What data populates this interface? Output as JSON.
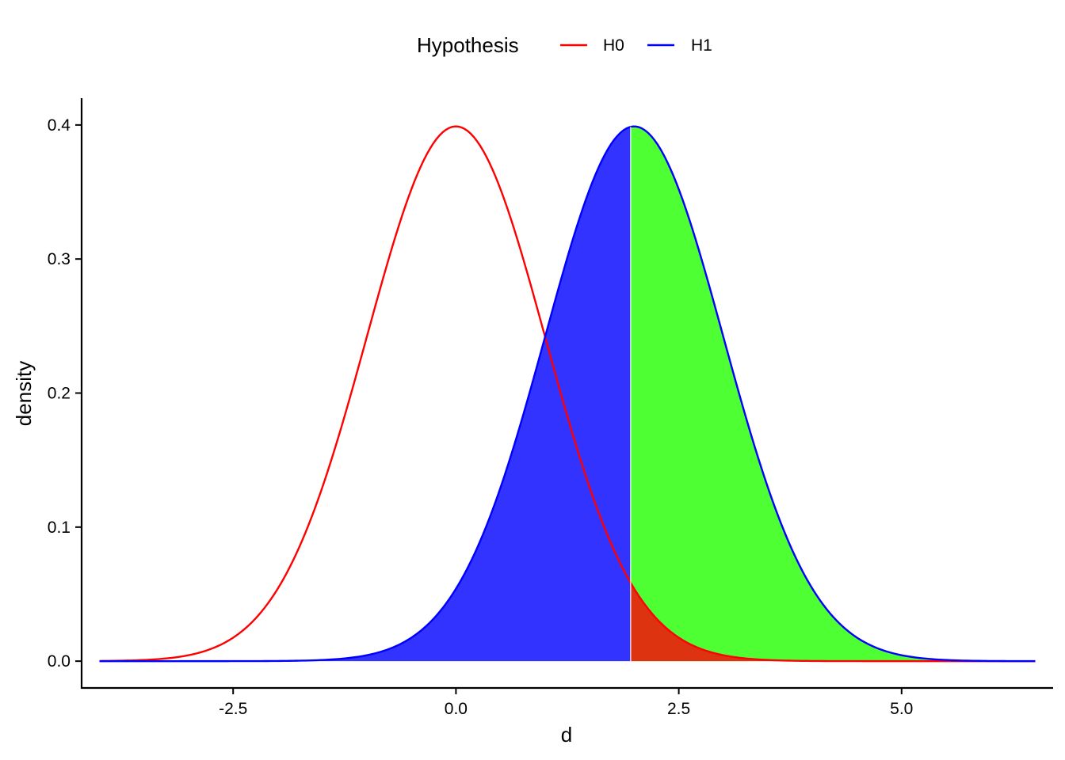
{
  "chart_data": {
    "type": "area",
    "xlabel": "d",
    "ylabel": "density",
    "xlim": [
      -4.2,
      6.7
    ],
    "ylim": [
      -0.02,
      0.42
    ],
    "x_ticks": [
      -2.5,
      0.0,
      2.5,
      5.0
    ],
    "x_tick_labels": [
      "-2.5",
      "0.0",
      "2.5",
      "5.0"
    ],
    "y_ticks": [
      0.0,
      0.1,
      0.2,
      0.3,
      0.4
    ],
    "y_tick_labels": [
      "0.0",
      "0.1",
      "0.2",
      "0.3",
      "0.4"
    ],
    "grid": false,
    "legend": {
      "title": "Hypothesis",
      "placement": "top",
      "entries": [
        {
          "label": "H0",
          "color": "#ff0000"
        },
        {
          "label": "H1",
          "color": "#0000ff"
        }
      ]
    },
    "critical_value": 1.96,
    "series": [
      {
        "name": "H0",
        "distribution": "normal",
        "mean": 0.0,
        "sd": 1.0,
        "x_range": [
          -4.0,
          6.5
        ],
        "color": "#ff0000"
      },
      {
        "name": "H1",
        "distribution": "normal",
        "mean": 2.0,
        "sd": 1.0,
        "x_range": [
          -4.0,
          6.5
        ],
        "color": "#0000ff"
      }
    ],
    "shaded_regions": [
      {
        "under": "H1",
        "x_range": [
          -4.0,
          1.96
        ],
        "color": "#3333ff"
      },
      {
        "under": "H1",
        "x_range": [
          1.96,
          6.5
        ],
        "color": "#4dff33"
      },
      {
        "under": "H0",
        "x_range": [
          1.96,
          6.5
        ],
        "color": "#dd3311"
      }
    ]
  }
}
